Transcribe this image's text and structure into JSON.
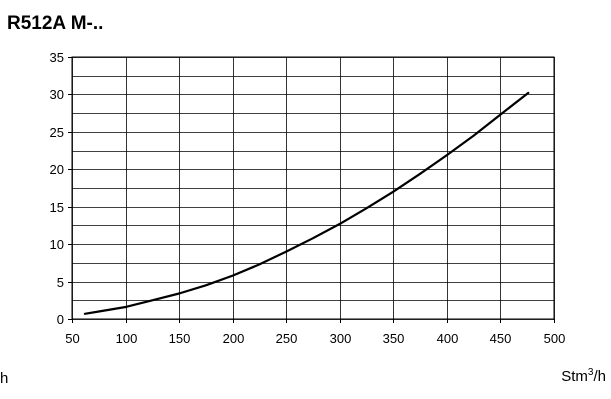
{
  "chart_data": {
    "type": "line",
    "title": "R512A M-..",
    "xlabel": "Stm³/h",
    "xlabel_left": "h",
    "ylabel": "",
    "xlim": [
      50,
      500
    ],
    "ylim": [
      0,
      35
    ],
    "xticks": [
      50,
      100,
      150,
      200,
      250,
      300,
      350,
      400,
      450,
      500
    ],
    "yticks": [
      0,
      5,
      10,
      15,
      20,
      25,
      30,
      35
    ],
    "grid": true,
    "legend": "none",
    "colors": {
      "line": "#000000",
      "grid": "#000000"
    },
    "series": [
      {
        "x": [
          62,
          75,
          100,
          125,
          150,
          175,
          200,
          225,
          250,
          275,
          300,
          325,
          350,
          375,
          400,
          425,
          450,
          476
        ],
        "y": [
          0.7,
          1.0,
          1.6,
          2.5,
          3.4,
          4.5,
          5.8,
          7.3,
          9.0,
          10.8,
          12.7,
          14.8,
          17.0,
          19.4,
          21.9,
          24.5,
          27.3,
          30.2
        ]
      }
    ]
  }
}
